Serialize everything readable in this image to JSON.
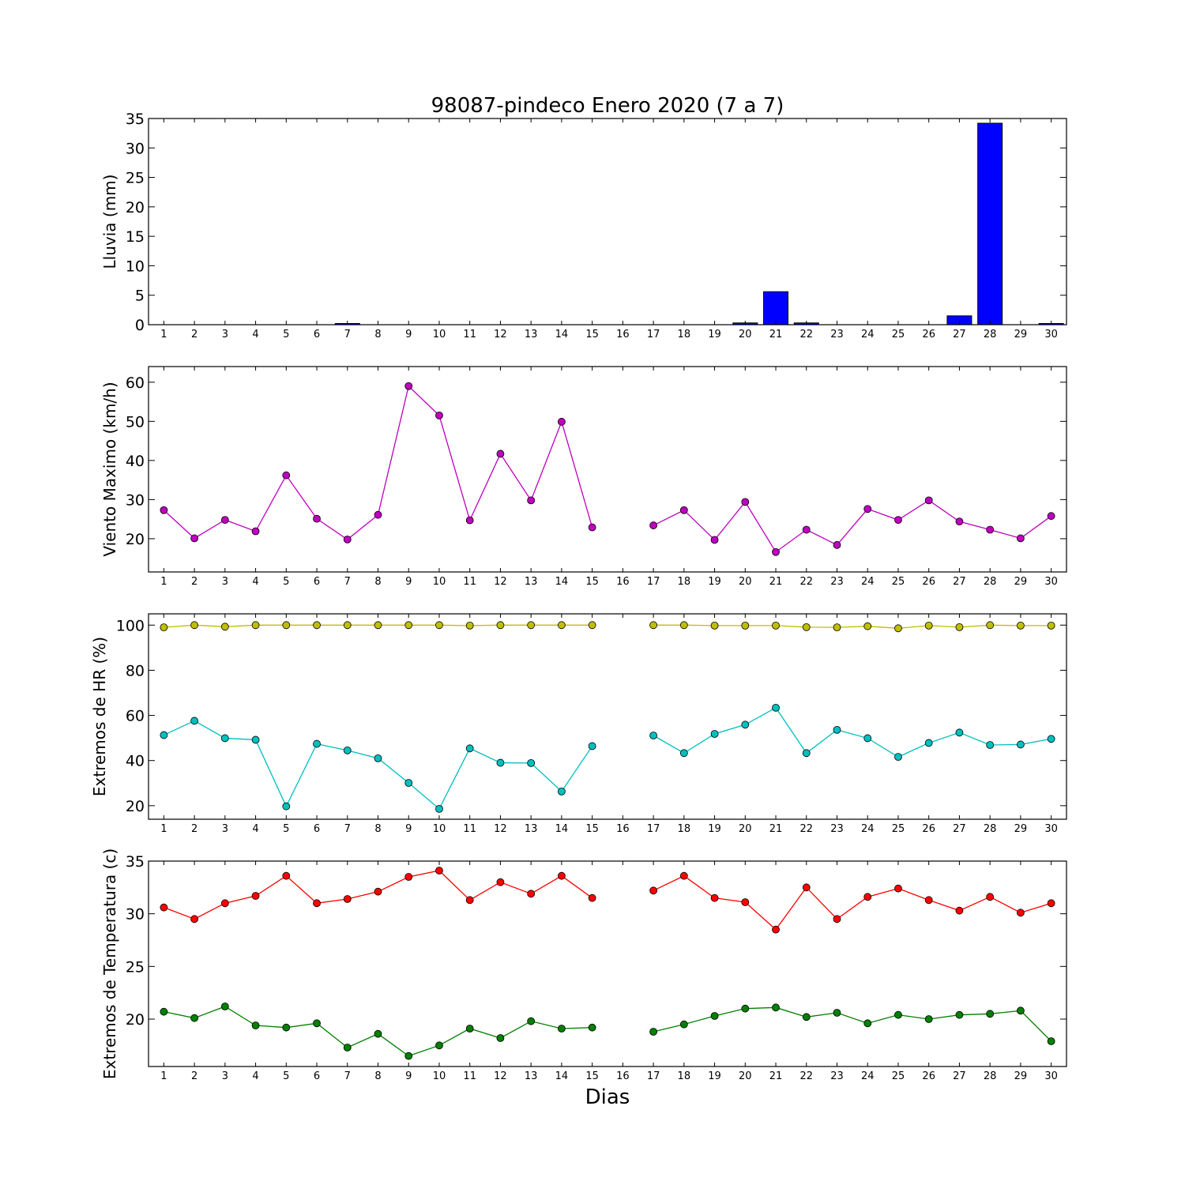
{
  "figure": {
    "title": "98087-pindeco Enero 2020  (7 a 7)",
    "xlabel": "Dias"
  },
  "chart_data": [
    {
      "id": "lluvia",
      "type": "bar",
      "ylabel": "Lluvia (mm)",
      "ylim": [
        0,
        35
      ],
      "yticks": [
        0,
        5,
        10,
        15,
        20,
        25,
        30,
        35
      ],
      "xlim": [
        0.5,
        30.5
      ],
      "xticks": [
        1,
        2,
        3,
        4,
        5,
        6,
        7,
        8,
        9,
        10,
        11,
        12,
        13,
        14,
        15,
        16,
        17,
        18,
        19,
        20,
        21,
        22,
        23,
        24,
        25,
        26,
        27,
        28,
        29,
        30
      ],
      "grid": false,
      "series": [
        {
          "color": "#0000ff",
          "x": [
            1,
            2,
            3,
            4,
            5,
            6,
            7,
            8,
            9,
            10,
            11,
            12,
            13,
            14,
            15,
            16,
            17,
            18,
            19,
            20,
            21,
            22,
            23,
            24,
            25,
            26,
            27,
            28,
            29,
            30
          ],
          "values": [
            0,
            0,
            0,
            0,
            0,
            0,
            0.2,
            0,
            0,
            0,
            0,
            0,
            0,
            0,
            0,
            0,
            0,
            0,
            0,
            0.3,
            5.6,
            0.3,
            0,
            0,
            0,
            0,
            1.5,
            34.2,
            0,
            0.2
          ]
        }
      ]
    },
    {
      "id": "viento",
      "type": "line",
      "ylabel": "Viento Maximo (km/h)",
      "ylim": [
        11.5,
        64
      ],
      "yticks": [
        20,
        30,
        40,
        50,
        60
      ],
      "xlim": [
        0.5,
        30.5
      ],
      "xticks": [
        1,
        2,
        3,
        4,
        5,
        6,
        7,
        8,
        9,
        10,
        11,
        12,
        13,
        14,
        15,
        16,
        17,
        18,
        19,
        20,
        21,
        22,
        23,
        24,
        25,
        26,
        27,
        28,
        29,
        30
      ],
      "grid": false,
      "series": [
        {
          "color": "#bf00bf",
          "x": [
            1,
            2,
            3,
            4,
            5,
            6,
            7,
            8,
            9,
            10,
            11,
            12,
            13,
            14,
            15,
            16,
            17,
            18,
            19,
            20,
            21,
            22,
            23,
            24,
            25,
            26,
            27,
            28,
            29,
            30
          ],
          "values": [
            27.3,
            20.1,
            24.8,
            21.9,
            36.2,
            25.1,
            19.8,
            26.1,
            59.0,
            51.5,
            24.7,
            41.7,
            29.8,
            49.9,
            22.9,
            null,
            23.4,
            27.3,
            19.7,
            29.4,
            16.6,
            22.3,
            18.4,
            27.6,
            24.8,
            29.8,
            24.4,
            22.3,
            20.1,
            25.8
          ]
        }
      ]
    },
    {
      "id": "hr",
      "type": "line",
      "ylabel": "Extremos de HR (%)",
      "ylim": [
        14,
        105
      ],
      "yticks": [
        20,
        40,
        60,
        80,
        100
      ],
      "xlim": [
        0.5,
        30.5
      ],
      "xticks": [
        1,
        2,
        3,
        4,
        5,
        6,
        7,
        8,
        9,
        10,
        11,
        12,
        13,
        14,
        15,
        16,
        17,
        18,
        19,
        20,
        21,
        22,
        23,
        24,
        25,
        26,
        27,
        28,
        29,
        30
      ],
      "grid": false,
      "series": [
        {
          "color": "#bfbf00",
          "x": [
            1,
            2,
            3,
            4,
            5,
            6,
            7,
            8,
            9,
            10,
            11,
            12,
            13,
            14,
            15,
            16,
            17,
            18,
            19,
            20,
            21,
            22,
            23,
            24,
            25,
            26,
            27,
            28,
            29,
            30
          ],
          "values": [
            99,
            100,
            99.3,
            100,
            100,
            100,
            100,
            100,
            100,
            100,
            99.8,
            100,
            100,
            100,
            100,
            null,
            100,
            100,
            99.8,
            99.8,
            99.8,
            99.1,
            99,
            99.5,
            98.6,
            99.8,
            99.1,
            100,
            99.8,
            99.8
          ]
        },
        {
          "color": "#00bfbf",
          "x": [
            1,
            2,
            3,
            4,
            5,
            6,
            7,
            8,
            9,
            10,
            11,
            12,
            13,
            14,
            15,
            16,
            17,
            18,
            19,
            20,
            21,
            22,
            23,
            24,
            25,
            26,
            27,
            28,
            29,
            30
          ],
          "values": [
            51.3,
            57.6,
            49.9,
            49.2,
            19.7,
            47.4,
            44.5,
            41,
            30.1,
            18.6,
            45.4,
            39,
            38.9,
            26.3,
            46.4,
            null,
            51.1,
            43.3,
            51.8,
            55.9,
            63.4,
            43.3,
            53.6,
            49.9,
            41.6,
            47.8,
            52.4,
            46.9,
            47.1,
            49.6
          ]
        }
      ]
    },
    {
      "id": "temperatura",
      "type": "line",
      "ylabel": "Extremos de Temperatura (c)",
      "ylim": [
        15.5,
        35
      ],
      "yticks": [
        20,
        25,
        30,
        35
      ],
      "xlim": [
        0.5,
        30.5
      ],
      "xticks": [
        1,
        2,
        3,
        4,
        5,
        6,
        7,
        8,
        9,
        10,
        11,
        12,
        13,
        14,
        15,
        16,
        17,
        18,
        19,
        20,
        21,
        22,
        23,
        24,
        25,
        26,
        27,
        28,
        29,
        30
      ],
      "grid": false,
      "series": [
        {
          "color": "#ff0000",
          "x": [
            1,
            2,
            3,
            4,
            5,
            6,
            7,
            8,
            9,
            10,
            11,
            12,
            13,
            14,
            15,
            16,
            17,
            18,
            19,
            20,
            21,
            22,
            23,
            24,
            25,
            26,
            27,
            28,
            29,
            30
          ],
          "values": [
            30.6,
            29.5,
            31,
            31.7,
            33.6,
            31,
            31.4,
            32.1,
            33.5,
            34.1,
            31.3,
            33,
            31.9,
            33.6,
            31.5,
            null,
            32.2,
            33.6,
            31.5,
            31.1,
            28.5,
            32.5,
            29.5,
            31.6,
            32.4,
            31.3,
            30.3,
            31.6,
            30.1,
            31
          ]
        },
        {
          "color": "#008000",
          "x": [
            1,
            2,
            3,
            4,
            5,
            6,
            7,
            8,
            9,
            10,
            11,
            12,
            13,
            14,
            15,
            16,
            17,
            18,
            19,
            20,
            21,
            22,
            23,
            24,
            25,
            26,
            27,
            28,
            29,
            30
          ],
          "values": [
            20.7,
            20.1,
            21.2,
            19.4,
            19.2,
            19.6,
            17.3,
            18.6,
            16.5,
            17.5,
            19.1,
            18.2,
            19.8,
            19.1,
            19.2,
            null,
            18.8,
            19.5,
            20.3,
            21,
            21.1,
            20.2,
            20.6,
            19.6,
            20.4,
            20,
            20.4,
            20.5,
            20.8,
            17.9
          ]
        }
      ]
    }
  ]
}
